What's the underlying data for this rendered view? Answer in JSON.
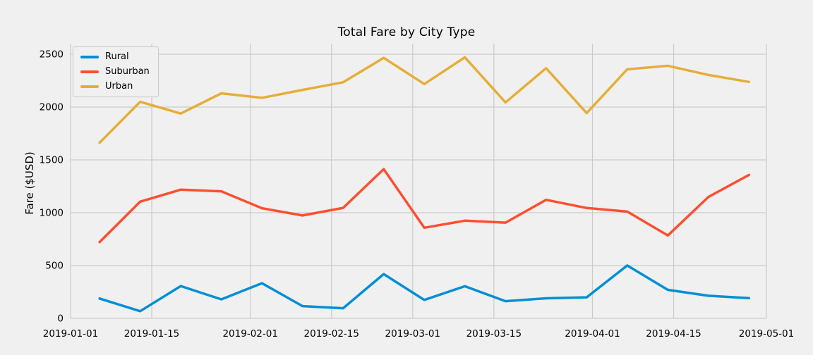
{
  "chart_data": {
    "type": "line",
    "title": "Total Fare by City Type",
    "xlabel": "",
    "ylabel": "Fare ($USD)",
    "grid": true,
    "legend_position": "upper left",
    "background_color": "#f0f0f0",
    "gridline_color": "#cbcbcb",
    "xlim": [
      "2019-01-01",
      "2019-05-01"
    ],
    "ylim": [
      0,
      2600
    ],
    "x_tick_labels": [
      "2019-01-01",
      "2019-01-15",
      "2019-02-01",
      "2019-02-15",
      "2019-03-01",
      "2019-03-15",
      "2019-04-01",
      "2019-04-15",
      "2019-05-01"
    ],
    "y_ticks": [
      0,
      500,
      1000,
      1500,
      2000,
      2500
    ],
    "x": [
      "2019-01-06",
      "2019-01-13",
      "2019-01-20",
      "2019-01-27",
      "2019-02-03",
      "2019-02-10",
      "2019-02-17",
      "2019-02-24",
      "2019-03-03",
      "2019-03-10",
      "2019-03-17",
      "2019-03-24",
      "2019-03-31",
      "2019-04-07",
      "2019-04-14",
      "2019-04-21",
      "2019-04-28"
    ],
    "series": [
      {
        "name": "Rural",
        "color": "#008fd5",
        "values": [
          188,
          68,
          306,
          180,
          333,
          116,
          96,
          419,
          175,
          304,
          163,
          190,
          199,
          501,
          270,
          214,
          192
        ]
      },
      {
        "name": "Suburban",
        "color": "#fc4f30",
        "values": [
          722,
          1105,
          1218,
          1203,
          1043,
          974,
          1046,
          1413,
          858,
          925,
          906,
          1122,
          1045,
          1011,
          785,
          1149,
          1358
        ]
      },
      {
        "name": "Urban",
        "color": "#e5ae38",
        "values": [
          1662,
          2050,
          1939,
          2130,
          2087,
          2163,
          2235,
          2466,
          2218,
          2471,
          2044,
          2368,
          1943,
          2357,
          2391,
          2304,
          2238
        ]
      }
    ]
  }
}
